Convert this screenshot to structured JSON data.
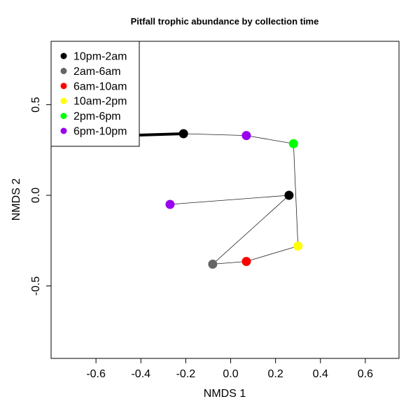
{
  "chart_data": {
    "type": "scatter",
    "title": "Pitfall trophic abundance by collection time",
    "xlabel": "NMDS 1",
    "ylabel": "NMDS 2",
    "xlim": [
      -0.8,
      0.75
    ],
    "ylim": [
      -0.9,
      0.85
    ],
    "xticks": [
      -0.6,
      -0.4,
      -0.2,
      0.0,
      0.2,
      0.4,
      0.6
    ],
    "xtick_labels": [
      "-0.6",
      "-0.4",
      "-0.2",
      "0.0",
      "0.2",
      "0.4",
      "0.6"
    ],
    "yticks": [
      -0.5,
      0.0,
      0.5
    ],
    "ytick_labels": [
      "-0.5",
      "0.0",
      "0.5"
    ],
    "grid": false,
    "legend_position": "top-left",
    "legend": [
      {
        "label": "10pm-2am",
        "color": "#000000"
      },
      {
        "label": "2am-6am",
        "color": "#666666"
      },
      {
        "label": "6am-10am",
        "color": "#ff0000"
      },
      {
        "label": "10am-2pm",
        "color": "#ffff00"
      },
      {
        "label": "2pm-6pm",
        "color": "#00ff00"
      },
      {
        "label": "6pm-10pm",
        "color": "#9900ee"
      }
    ],
    "series": [
      {
        "points": [
          {
            "x": -0.27,
            "y": -0.05,
            "color": "#9900ee"
          },
          {
            "x": 0.26,
            "y": 0.0,
            "color": "#000000"
          },
          {
            "x": -0.08,
            "y": -0.38,
            "color": "#666666"
          },
          {
            "x": 0.07,
            "y": -0.365,
            "color": "#ff0000"
          },
          {
            "x": 0.3,
            "y": -0.28,
            "color": "#ffff00"
          },
          {
            "x": 0.28,
            "y": 0.285,
            "color": "#00ff00"
          },
          {
            "x": 0.07,
            "y": 0.33,
            "color": "#9900ee"
          },
          {
            "x": -0.21,
            "y": 0.34,
            "color": "#000000"
          }
        ]
      }
    ],
    "arrow": {
      "from": {
        "x": -0.21,
        "y": 0.34
      },
      "to": {
        "x": -0.47,
        "y": 0.33
      },
      "color": "#000000"
    }
  }
}
